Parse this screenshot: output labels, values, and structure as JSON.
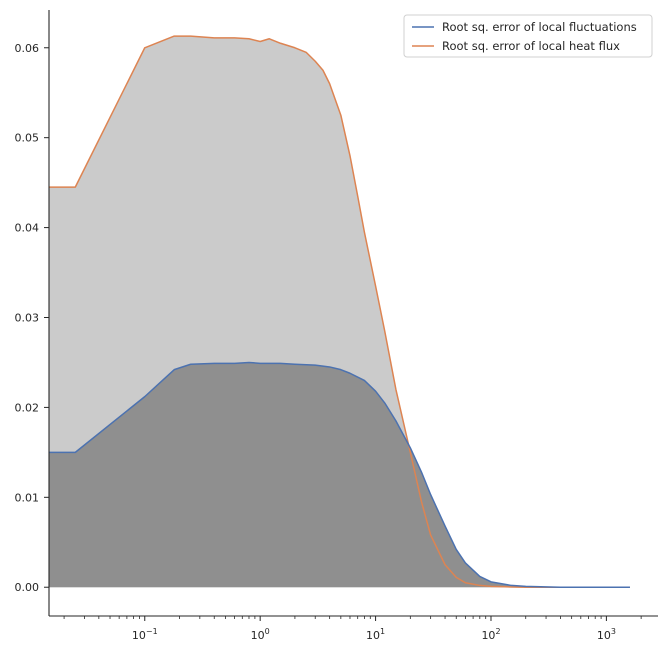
{
  "chart_data": {
    "type": "area",
    "xscale": "log",
    "xlim": [
      0.0148,
      2800
    ],
    "ylim": [
      -0.0032,
      0.0642
    ],
    "grid": false,
    "legend_position": "top-right",
    "xticks": [
      {
        "value": 0.1,
        "base": "10",
        "exp": "−1"
      },
      {
        "value": 1,
        "base": "10",
        "exp": "0"
      },
      {
        "value": 10,
        "base": "10",
        "exp": "1"
      },
      {
        "value": 100,
        "base": "10",
        "exp": "2"
      },
      {
        "value": 1000,
        "base": "10",
        "exp": "3"
      }
    ],
    "yticks": [
      {
        "value": 0.0,
        "label": "0.00"
      },
      {
        "value": 0.01,
        "label": "0.01"
      },
      {
        "value": 0.02,
        "label": "0.02"
      },
      {
        "value": 0.03,
        "label": "0.03"
      },
      {
        "value": 0.04,
        "label": "0.04"
      },
      {
        "value": 0.05,
        "label": "0.05"
      },
      {
        "value": 0.06,
        "label": "0.06"
      }
    ],
    "series": [
      {
        "name": "Root sq. error of local heat flux",
        "color": "#dd8452",
        "fill": "#cbcbcb",
        "x": [
          0.0148,
          0.025,
          0.1,
          0.18,
          0.25,
          0.4,
          0.6,
          0.8,
          1.0,
          1.2,
          1.5,
          2.0,
          2.5,
          3.0,
          3.5,
          4.0,
          5.0,
          6.0,
          7.0,
          8.0,
          10.0,
          12.0,
          15.0,
          20.0,
          25.0,
          30.0,
          40.0,
          50.0,
          60.0,
          80.0,
          100.0,
          150.0,
          200.0,
          400.0,
          1000.0,
          1600.0
        ],
        "y": [
          0.0445,
          0.0445,
          0.06,
          0.0613,
          0.0613,
          0.0611,
          0.0611,
          0.061,
          0.0607,
          0.061,
          0.0605,
          0.06,
          0.0595,
          0.0585,
          0.0575,
          0.056,
          0.0525,
          0.048,
          0.0435,
          0.0395,
          0.0335,
          0.0285,
          0.022,
          0.015,
          0.0095,
          0.0058,
          0.0025,
          0.0011,
          0.0005,
          0.0002,
          0.0001,
          3e-05,
          0.0,
          0.0,
          0.0,
          0.0
        ]
      },
      {
        "name": "Root sq. error of local fluctuations",
        "color": "#4c72b0",
        "fill": "#8f8f8f",
        "x": [
          0.0148,
          0.025,
          0.1,
          0.18,
          0.25,
          0.4,
          0.6,
          0.8,
          1.0,
          1.5,
          2.0,
          3.0,
          4.0,
          5.0,
          6.0,
          8.0,
          10.0,
          12.0,
          15.0,
          20.0,
          25.0,
          30.0,
          40.0,
          50.0,
          60.0,
          80.0,
          100.0,
          150.0,
          200.0,
          400.0,
          1000.0,
          1600.0
        ],
        "y": [
          0.015,
          0.015,
          0.0212,
          0.0242,
          0.0248,
          0.0249,
          0.0249,
          0.025,
          0.0249,
          0.0249,
          0.0248,
          0.0247,
          0.0245,
          0.0242,
          0.0238,
          0.023,
          0.0218,
          0.0205,
          0.0185,
          0.0155,
          0.0128,
          0.0103,
          0.0068,
          0.0042,
          0.0027,
          0.0012,
          0.0006,
          0.0002,
          0.0001,
          0.0,
          0.0,
          0.0
        ]
      }
    ],
    "legend_order": [
      1,
      0
    ]
  }
}
